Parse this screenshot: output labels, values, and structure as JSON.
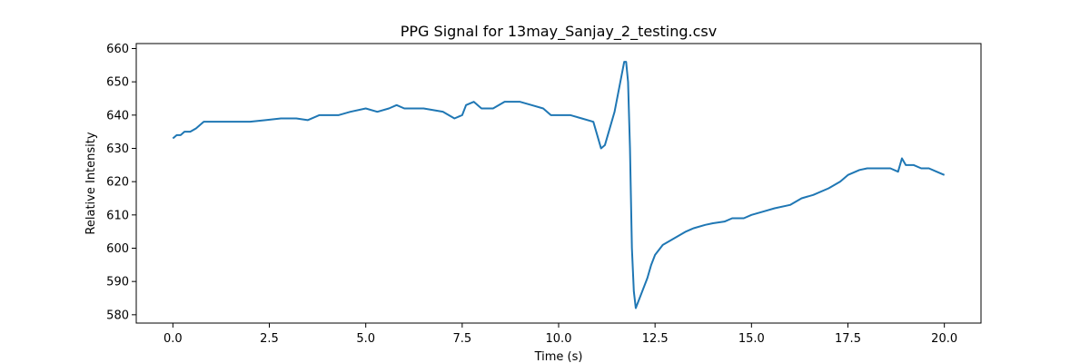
{
  "chart_data": {
    "type": "line",
    "title": "PPG Signal for 13may_Sanjay_2_testing.csv",
    "xlabel": "Time (s)",
    "ylabel": "Relative Intensity",
    "xlim": [
      -0.95,
      20.95
    ],
    "ylim": [
      577.5,
      661.5
    ],
    "xticks": [
      0.0,
      2.5,
      5.0,
      7.5,
      10.0,
      12.5,
      15.0,
      17.5,
      20.0
    ],
    "xtick_labels": [
      "0.0",
      "2.5",
      "5.0",
      "7.5",
      "10.0",
      "12.5",
      "15.0",
      "17.5",
      "20.0"
    ],
    "yticks": [
      580,
      590,
      600,
      610,
      620,
      630,
      640,
      650,
      660
    ],
    "ytick_labels": [
      "580",
      "590",
      "600",
      "610",
      "620",
      "630",
      "640",
      "650",
      "660"
    ],
    "grid": false,
    "series": [
      {
        "color": "#1f77b4",
        "x": [
          0.0,
          0.1,
          0.2,
          0.3,
          0.45,
          0.6,
          0.8,
          1.0,
          1.3,
          1.6,
          2.0,
          2.4,
          2.8,
          3.2,
          3.5,
          3.8,
          4.0,
          4.3,
          4.6,
          5.0,
          5.3,
          5.6,
          5.8,
          6.0,
          6.5,
          7.0,
          7.3,
          7.5,
          7.6,
          7.8,
          8.0,
          8.3,
          8.6,
          8.8,
          9.0,
          9.3,
          9.6,
          9.8,
          10.0,
          10.3,
          10.6,
          10.9,
          11.0,
          11.1,
          11.2,
          11.3,
          11.45,
          11.6,
          11.7,
          11.75,
          11.8,
          11.85,
          11.9,
          11.95,
          12.0,
          12.1,
          12.2,
          12.3,
          12.4,
          12.5,
          12.7,
          13.0,
          13.3,
          13.5,
          13.8,
          14.0,
          14.3,
          14.5,
          14.8,
          15.0,
          15.3,
          15.6,
          16.0,
          16.3,
          16.6,
          17.0,
          17.3,
          17.5,
          17.8,
          18.0,
          18.3,
          18.6,
          18.8,
          18.9,
          19.0,
          19.2,
          19.4,
          19.6,
          19.8,
          20.0
        ],
        "y": [
          633,
          634,
          634,
          635,
          635,
          636,
          638,
          638,
          638,
          638,
          638,
          638.5,
          639,
          639,
          638.5,
          640,
          640,
          640,
          641,
          642,
          641,
          642,
          643,
          642,
          642,
          641,
          639,
          640,
          643,
          644,
          642,
          642,
          644,
          644,
          644,
          643,
          642,
          640,
          640,
          640,
          639,
          638,
          634,
          630,
          631,
          635,
          641,
          650,
          656,
          656,
          650,
          630,
          600,
          587,
          582,
          585,
          588,
          591,
          595,
          598,
          601,
          603,
          605,
          606,
          607,
          607.5,
          608,
          609,
          609,
          610,
          611,
          612,
          613,
          615,
          616,
          618,
          620,
          622,
          623.5,
          624,
          624,
          624,
          623,
          627,
          625,
          625,
          624,
          624,
          623,
          622
        ]
      }
    ]
  }
}
